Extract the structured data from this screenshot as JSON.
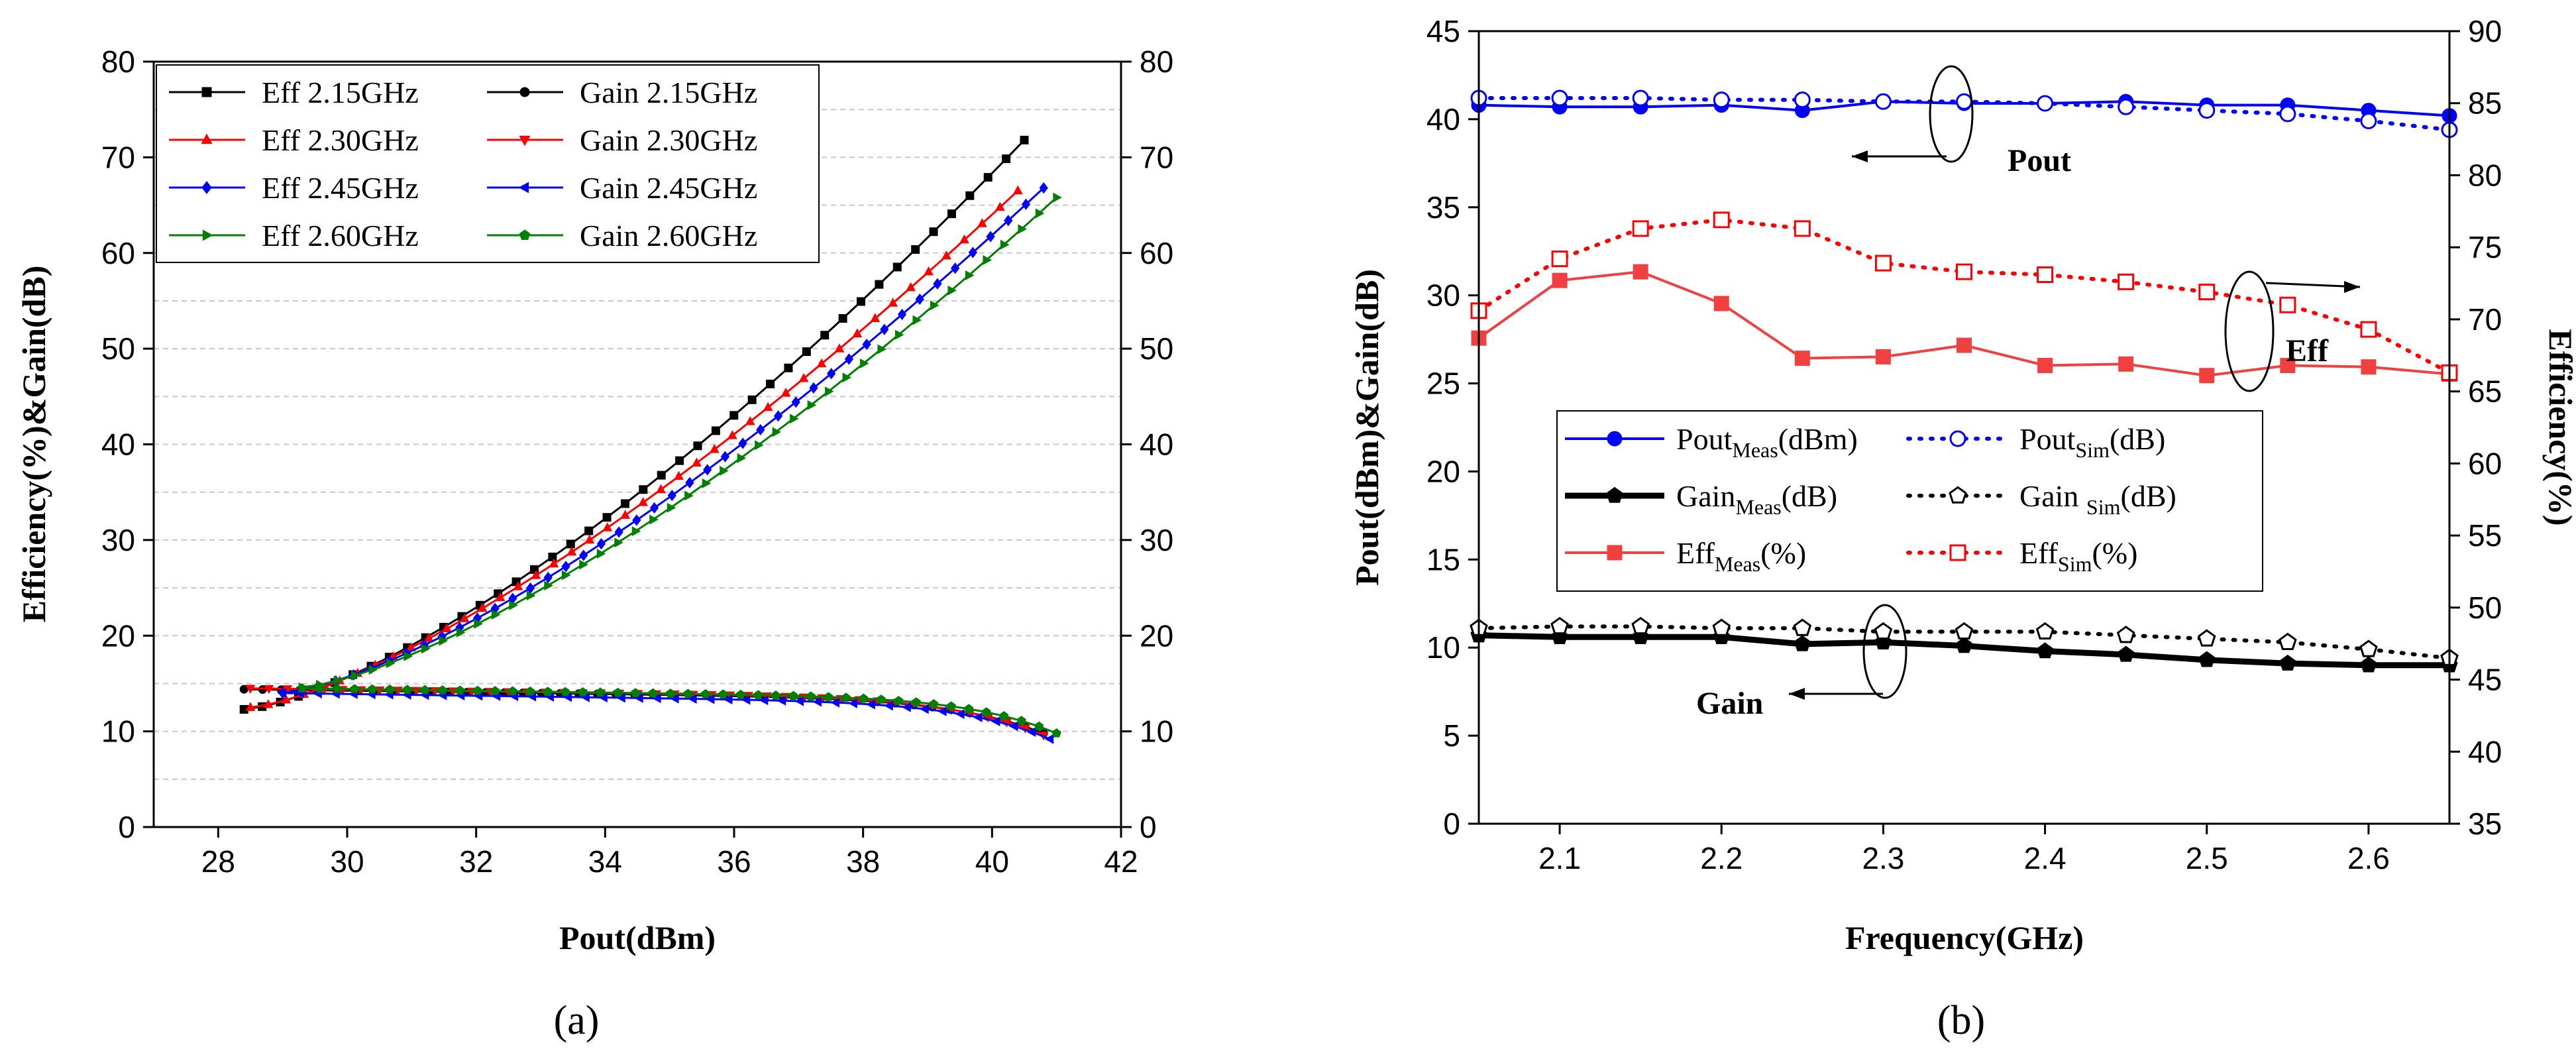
{
  "chart_data": [
    {
      "type": "line",
      "panel_label": "(a)",
      "xlabel": "Pout(dBm)",
      "ylabel": "Efficiency(%)&Gain(dB)",
      "xlim": [
        27,
        42
      ],
      "ylim": [
        0,
        80
      ],
      "y2lim": [
        0,
        80
      ],
      "xticks": [
        "28",
        "30",
        "32",
        "34",
        "36",
        "38",
        "40",
        "42"
      ],
      "yticks": [
        "0",
        "10",
        "20",
        "30",
        "40",
        "50",
        "60",
        "70",
        "80"
      ],
      "y2ticks": [
        "0",
        "10",
        "20",
        "30",
        "40",
        "50",
        "60",
        "70",
        "80"
      ],
      "grid": "horizontal dashed",
      "legend_position": "top-left",
      "series": [
        {
          "name": "Eff 2.15GHz",
          "color": "#000000",
          "marker": "square",
          "kind": "eff",
          "start": [
            28.4,
            12.3
          ],
          "end": [
            40.5,
            71.8
          ],
          "curvature": 1.42
        },
        {
          "name": "Gain 2.15GHz",
          "color": "#000000",
          "marker": "circle",
          "kind": "gain",
          "start": [
            28.4,
            14.4
          ],
          "end": [
            40.8,
            9.8
          ]
        },
        {
          "name": "Eff 2.30GHz",
          "color": "#ff0000",
          "marker": "triangle-up",
          "kind": "eff",
          "start": [
            28.5,
            12.5
          ],
          "end": [
            40.4,
            66.5
          ],
          "curvature": 1.38
        },
        {
          "name": "Gain 2.30GHz",
          "color": "#ff0000",
          "marker": "triangle-down",
          "kind": "gain",
          "start": [
            28.5,
            14.5
          ],
          "end": [
            40.8,
            9.6
          ]
        },
        {
          "name": "Eff 2.45GHz",
          "color": "#0000ff",
          "marker": "diamond",
          "kind": "eff",
          "start": [
            29.0,
            14.0
          ],
          "end": [
            40.8,
            66.8
          ],
          "curvature": 1.4
        },
        {
          "name": "Gain 2.45GHz",
          "color": "#0000ff",
          "marker": "triangle-left",
          "kind": "gain",
          "start": [
            29.0,
            14.0
          ],
          "end": [
            40.9,
            9.2
          ]
        },
        {
          "name": "Eff 2.60GHz",
          "color": "#008000",
          "marker": "triangle-right",
          "kind": "eff",
          "start": [
            29.3,
            14.6
          ],
          "end": [
            41.0,
            65.8
          ],
          "curvature": 1.4
        },
        {
          "name": "Gain 2.60GHz",
          "color": "#008000",
          "marker": "pentagon",
          "kind": "gain",
          "start": [
            29.3,
            14.5
          ],
          "end": [
            41.0,
            9.8
          ]
        }
      ]
    },
    {
      "type": "line",
      "panel_label": "(b)",
      "xlabel": "Frequency(GHz)",
      "ylabel": "Pout(dBm)&Gain(dB)",
      "y2label": "Efficiency(%)",
      "xlim": [
        2.05,
        2.65
      ],
      "ylim": [
        0,
        45
      ],
      "y2lim": [
        35,
        90
      ],
      "xticks": [
        "2.1",
        "2.2",
        "2.3",
        "2.4",
        "2.5",
        "2.6"
      ],
      "yticks": [
        "0",
        "5",
        "10",
        "15",
        "20",
        "25",
        "30",
        "35",
        "40",
        "45"
      ],
      "y2ticks": [
        "35",
        "40",
        "45",
        "50",
        "55",
        "60",
        "65",
        "70",
        "75",
        "80",
        "85",
        "90"
      ],
      "x": [
        2.05,
        2.1,
        2.15,
        2.2,
        2.25,
        2.3,
        2.35,
        2.4,
        2.45,
        2.5,
        2.55,
        2.6,
        2.65
      ],
      "series": [
        {
          "name": "Pout_Meas(dBm)",
          "axis": "left",
          "color": "#0000ff",
          "style": "solid",
          "marker": "filled-circle",
          "values": [
            40.8,
            40.7,
            40.7,
            40.8,
            40.5,
            41.0,
            40.9,
            40.9,
            41.0,
            40.8,
            40.8,
            40.5,
            40.2
          ]
        },
        {
          "name": "Pout_Sim(dB)",
          "axis": "left",
          "color": "#0000ff",
          "style": "dotted",
          "marker": "open-circle",
          "values": [
            41.2,
            41.2,
            41.2,
            41.1,
            41.1,
            41.0,
            41.0,
            40.9,
            40.7,
            40.5,
            40.3,
            39.9,
            39.4
          ]
        },
        {
          "name": "Gain_Meas(dB)",
          "axis": "left",
          "color": "#000000",
          "style": "solid-thick",
          "marker": "filled-pentagon",
          "values": [
            10.7,
            10.6,
            10.6,
            10.6,
            10.2,
            10.3,
            10.1,
            9.8,
            9.6,
            9.3,
            9.1,
            9.0,
            9.0
          ]
        },
        {
          "name": "Gain_Sim(dB)",
          "axis": "left",
          "color": "#000000",
          "style": "dotted",
          "marker": "open-pentagon",
          "values": [
            11.1,
            11.2,
            11.2,
            11.1,
            11.1,
            10.9,
            10.9,
            10.9,
            10.7,
            10.5,
            10.3,
            9.9,
            9.4
          ]
        },
        {
          "name": "Eff_Meas(%)",
          "axis": "right",
          "color": "#f04040",
          "style": "solid",
          "marker": "filled-square",
          "values": [
            68.7,
            72.7,
            73.3,
            71.1,
            67.3,
            67.4,
            68.2,
            66.8,
            66.9,
            66.1,
            66.8,
            66.7,
            66.2
          ]
        },
        {
          "name": "Eff_Sim(%)",
          "axis": "right",
          "color": "#ff0000",
          "style": "dotted",
          "marker": "open-square",
          "values": [
            70.6,
            74.2,
            76.3,
            76.9,
            76.3,
            73.9,
            73.3,
            73.1,
            72.6,
            71.9,
            71.0,
            69.3,
            66.3
          ]
        }
      ],
      "legend": {
        "position": "center-left",
        "entries": [
          {
            "base": "Pout",
            "sub": "Meas",
            "unit": "(dBm)"
          },
          {
            "base": "Pout",
            "sub": "Sim",
            "unit": "(dB)"
          },
          {
            "base": "Gain",
            "sub": "Meas",
            "unit": "(dB)"
          },
          {
            "base": "Gain ",
            "sub": "Sim",
            "unit": "(dB)"
          },
          {
            "base": "Eff",
            "sub": "Meas",
            "unit": "(%)"
          },
          {
            "base": "Eff",
            "sub": "Sim",
            "unit": "(%)"
          }
        ]
      },
      "annotations": [
        "Pout",
        "Eff",
        "Gain"
      ]
    }
  ]
}
